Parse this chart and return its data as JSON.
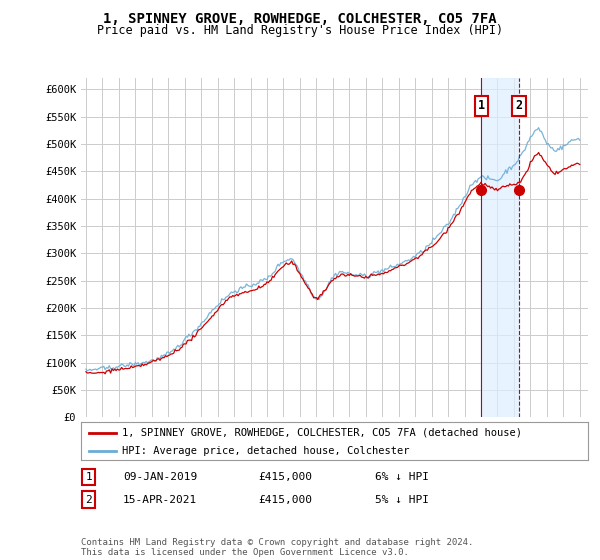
{
  "title": "1, SPINNEY GROVE, ROWHEDGE, COLCHESTER, CO5 7FA",
  "subtitle": "Price paid vs. HM Land Registry's House Price Index (HPI)",
  "ylabel_ticks": [
    "£0",
    "£50K",
    "£100K",
    "£150K",
    "£200K",
    "£250K",
    "£300K",
    "£350K",
    "£400K",
    "£450K",
    "£500K",
    "£550K",
    "£600K"
  ],
  "ytick_values": [
    0,
    50000,
    100000,
    150000,
    200000,
    250000,
    300000,
    350000,
    400000,
    450000,
    500000,
    550000,
    600000
  ],
  "ylim": [
    0,
    620000
  ],
  "legend_line1": "1, SPINNEY GROVE, ROWHEDGE, COLCHESTER, CO5 7FA (detached house)",
  "legend_line2": "HPI: Average price, detached house, Colchester",
  "note1_num": "1",
  "note1_date": "09-JAN-2019",
  "note1_price": "£415,000",
  "note1_hpi": "6% ↓ HPI",
  "note2_num": "2",
  "note2_date": "15-APR-2021",
  "note2_price": "£415,000",
  "note2_hpi": "5% ↓ HPI",
  "footnote": "Contains HM Land Registry data © Crown copyright and database right 2024.\nThis data is licensed under the Open Government Licence v3.0.",
  "hpi_color": "#6aadd5",
  "price_color": "#CC0000",
  "marker1_year": 2019.03,
  "marker2_year": 2021.29,
  "marker1_price": 415000,
  "marker2_price": 415000,
  "background_color": "#ffffff",
  "grid_color": "#cccccc",
  "shade_color": "#ddeeff"
}
